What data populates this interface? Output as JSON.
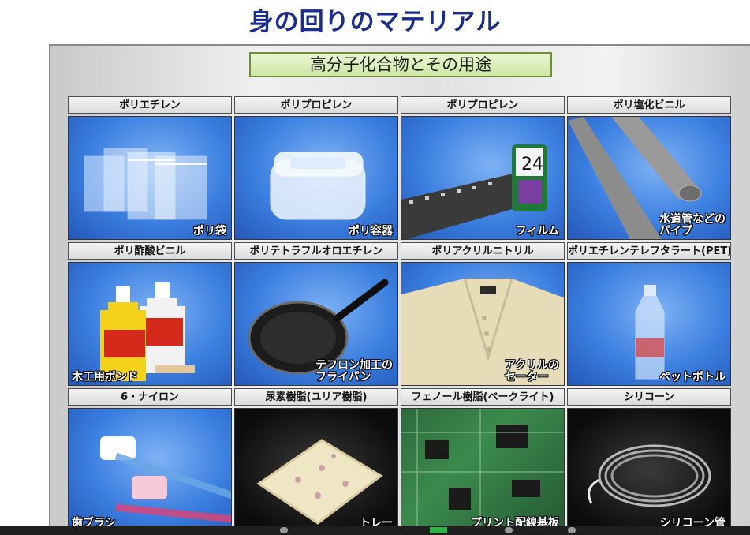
{
  "page": {
    "title": "身の回りのマテリアル"
  },
  "slide": {
    "banner": "高分子化合物とその用途"
  },
  "cells": [
    {
      "label": "ポリエチレン",
      "caption": "ポリ袋",
      "scene": "bags"
    },
    {
      "label": "ポリプロピレン",
      "caption": "ポリ容器",
      "scene": "container"
    },
    {
      "label": "ポリプロピレン",
      "caption": "フィルム",
      "scene": "film"
    },
    {
      "label": "ポリ塩化ビニル",
      "caption": "水道管などの\nパイプ",
      "scene": "pipes"
    },
    {
      "label": "ポリ酢酸ビニル",
      "caption": "木工用ボンド",
      "scene": "bond"
    },
    {
      "label": "ポリテトラフルオロエチレン",
      "caption": "テフロン加工の\nフライパン",
      "scene": "pan"
    },
    {
      "label": "ポリアクリルニトリル",
      "caption": "アクリルの\nセーター",
      "scene": "sweater"
    },
    {
      "label": "ポリエチレンテレフタラート(PET)",
      "caption": "ペットボトル",
      "scene": "bottle"
    },
    {
      "label": "6・ナイロン",
      "caption": "歯ブラシ",
      "scene": "toothbrush"
    },
    {
      "label": "尿素樹脂(ユリア樹脂)",
      "caption": "トレー",
      "scene": "tray"
    },
    {
      "label": "フェノール樹脂(ベークライト)",
      "caption": "プリント配線基板",
      "scene": "pcb"
    },
    {
      "label": "シリコーン",
      "caption": "シリコーン管",
      "scene": "tube"
    }
  ],
  "colors": {
    "title": "#1a2d8a",
    "banner_bg": "#d8eeb5",
    "photo_blue": "#3b7fe0"
  }
}
